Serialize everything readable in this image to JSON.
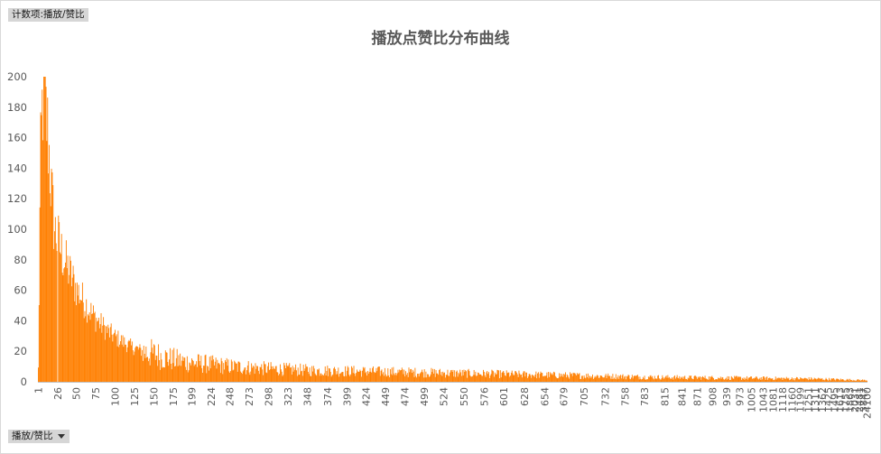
{
  "field_buttons": {
    "count_label": "计数项:播放/赞比",
    "axis_field": "播放/赞比"
  },
  "colors": {
    "bar": "#ff7f00",
    "axis": "#595959"
  },
  "chart_data": {
    "type": "bar",
    "title": "播放点赞比分布曲线",
    "xlabel": "",
    "ylabel": "",
    "ylim": [
      0,
      200
    ],
    "yticks": [
      0,
      20,
      40,
      60,
      80,
      100,
      120,
      140,
      160,
      180,
      200
    ],
    "grid": false,
    "legend": "none",
    "x_tick_labels": [
      "1",
      "26",
      "50",
      "75",
      "100",
      "125",
      "150",
      "175",
      "199",
      "224",
      "248",
      "273",
      "298",
      "323",
      "348",
      "374",
      "399",
      "424",
      "449",
      "474",
      "499",
      "524",
      "550",
      "576",
      "601",
      "628",
      "654",
      "679",
      "705",
      "732",
      "758",
      "783",
      "815",
      "841",
      "871",
      "908",
      "939",
      "973",
      "1005",
      "1043",
      "1081",
      "1118",
      "1160",
      "1199",
      "1251",
      "1311",
      "1362",
      "1425",
      "1495",
      "1613",
      "1755",
      "1863",
      "2031",
      "2481",
      "3847",
      "24100"
    ],
    "x_tick_positions": [
      0,
      25,
      49,
      74,
      99,
      124,
      149,
      174,
      198,
      223,
      247,
      272,
      297,
      322,
      347,
      373,
      398,
      423,
      448,
      473,
      498,
      523,
      549,
      575,
      600,
      627,
      653,
      678,
      704,
      731,
      757,
      782,
      808,
      830,
      850,
      870,
      888,
      905,
      920,
      935,
      948,
      960,
      972,
      983,
      993,
      1002,
      1011,
      1019,
      1027,
      1034,
      1041,
      1047,
      1053,
      1059,
      1064,
      1069
    ],
    "total_categories": 1070,
    "series": [
      {
        "name": "",
        "profile_x": [
          0,
          1,
          2,
          3,
          4,
          5,
          6,
          7,
          8,
          9,
          10,
          11,
          12,
          13,
          14,
          15,
          16,
          17,
          18,
          19,
          20,
          21,
          22,
          24,
          26,
          28,
          30,
          35,
          40,
          45,
          50,
          55,
          60,
          70,
          80,
          90,
          100,
          110,
          120,
          130,
          140,
          150,
          170,
          190,
          210,
          250,
          300,
          350,
          400,
          450,
          500,
          550,
          600,
          650,
          700,
          800,
          900,
          1000,
          1069
        ],
        "profile_y": [
          8,
          55,
          108,
          145,
          162,
          178,
          185,
          188,
          185,
          180,
          175,
          170,
          165,
          158,
          150,
          140,
          132,
          124,
          118,
          112,
          105,
          100,
          98,
          95,
          92,
          88,
          85,
          78,
          72,
          66,
          60,
          56,
          52,
          44,
          38,
          33,
          29,
          26,
          23,
          21,
          19,
          18,
          15,
          13,
          12,
          10,
          8.5,
          7.5,
          7,
          6.5,
          6,
          5.5,
          5,
          4.5,
          4,
          3,
          2.5,
          2,
          1
        ],
        "bin_26_value": 0
      }
    ]
  }
}
